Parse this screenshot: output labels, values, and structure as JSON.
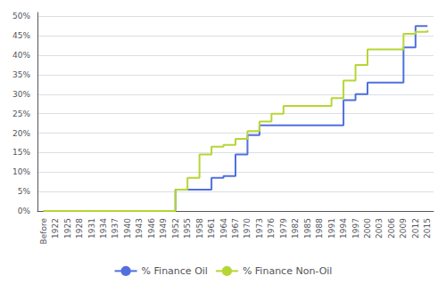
{
  "chart_data": {
    "type": "step",
    "categories": [
      "Before",
      "1922",
      "1925",
      "1928",
      "1931",
      "1934",
      "1937",
      "1940",
      "1943",
      "1946",
      "1949",
      "1952",
      "1955",
      "1958",
      "1961",
      "1964",
      "1967",
      "1970",
      "1973",
      "1976",
      "1979",
      "1982",
      "1985",
      "1988",
      "1991",
      "1994",
      "1997",
      "2000",
      "2003",
      "2006",
      "2009",
      "2012",
      "2015"
    ],
    "series": [
      {
        "name": "% Finance Oil",
        "values": [
          0,
          0,
          0,
          0,
          0,
          0,
          0,
          0,
          0,
          0,
          0,
          5.5,
          5.5,
          5.5,
          8.5,
          9.0,
          14.5,
          19.5,
          22.0,
          22.0,
          22.0,
          22.0,
          22.0,
          22.0,
          22.0,
          28.5,
          30.0,
          33.0,
          33.0,
          33.0,
          42.0,
          47.5,
          47.5
        ]
      },
      {
        "name": "% Finance Non-Oil",
        "values": [
          0,
          0,
          0,
          0,
          0,
          0,
          0,
          0,
          0,
          0,
          0,
          5.5,
          8.5,
          14.5,
          16.5,
          17.0,
          18.5,
          20.5,
          23.0,
          25.0,
          27.0,
          27.0,
          27.0,
          27.0,
          29.0,
          33.5,
          37.5,
          41.5,
          41.5,
          41.5,
          45.5,
          46.0,
          46.5
        ]
      }
    ],
    "ylim": [
      0,
      51
    ],
    "yticks": [
      {
        "value": 0,
        "label": "0%"
      },
      {
        "value": 5,
        "label": "5%"
      },
      {
        "value": 10,
        "label": "10%"
      },
      {
        "value": 15,
        "label": "15%"
      },
      {
        "value": 20,
        "label": "20%"
      },
      {
        "value": 25,
        "label": "25%"
      },
      {
        "value": 30,
        "label": "30%"
      },
      {
        "value": 35,
        "label": "35%"
      },
      {
        "value": 40,
        "label": "40%"
      },
      {
        "value": 45,
        "label": "45%"
      },
      {
        "value": 50,
        "label": "50%"
      }
    ],
    "grid": true,
    "legend": "bottom"
  }
}
